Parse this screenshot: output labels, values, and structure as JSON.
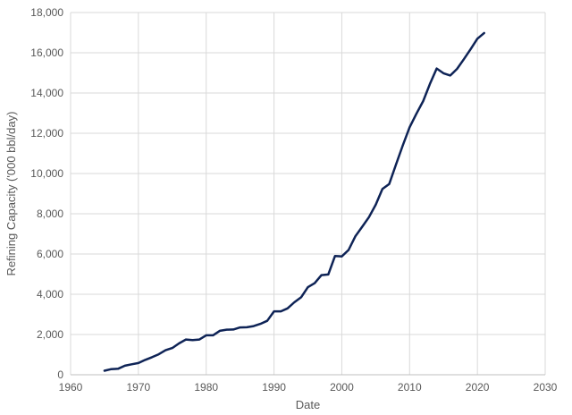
{
  "chart_data": {
    "type": "line",
    "title": "",
    "xlabel": "Date",
    "ylabel": "Refining Capacity ('000 bbl/day)",
    "xlim": [
      1960,
      2030
    ],
    "ylim": [
      0,
      18000
    ],
    "x_ticks": [
      1960,
      1970,
      1980,
      1990,
      2000,
      2010,
      2020,
      2030
    ],
    "y_ticks": [
      0,
      2000,
      4000,
      6000,
      8000,
      10000,
      12000,
      14000,
      16000,
      18000
    ],
    "x_tick_labels": [
      "1960",
      "1970",
      "1980",
      "1990",
      "2000",
      "2010",
      "2020",
      "2030"
    ],
    "y_tick_labels": [
      "0",
      "2,000",
      "4,000",
      "6,000",
      "8,000",
      "10,000",
      "12,000",
      "14,000",
      "16,000",
      "18,000"
    ],
    "grid": true,
    "legend": "none",
    "colors": {
      "line": "#0e2356",
      "grid": "#d9d9d9",
      "axis": "#bfbfbf",
      "text": "#595959"
    },
    "series": [
      {
        "x": [
          1965,
          1966,
          1967,
          1968,
          1969,
          1970,
          1971,
          1972,
          1973,
          1974,
          1975,
          1976,
          1977,
          1978,
          1979,
          1980,
          1981,
          1982,
          1983,
          1984,
          1985,
          1986,
          1987,
          1988,
          1989,
          1990,
          1991,
          1992,
          1993,
          1994,
          1995,
          1996,
          1997,
          1998,
          1999,
          2000,
          2001,
          2002,
          2003,
          2004,
          2005,
          2006,
          2007,
          2008,
          2009,
          2010,
          2011,
          2012,
          2013,
          2014,
          2015,
          2016,
          2017,
          2018,
          2019,
          2020,
          2021
        ],
        "values": [
          200,
          280,
          300,
          450,
          520,
          580,
          740,
          870,
          1020,
          1220,
          1330,
          1560,
          1750,
          1720,
          1750,
          1960,
          1960,
          2180,
          2240,
          2250,
          2350,
          2360,
          2420,
          2530,
          2680,
          3150,
          3150,
          3300,
          3600,
          3850,
          4350,
          4550,
          4950,
          4980,
          5900,
          5880,
          6200,
          6880,
          7350,
          7830,
          8450,
          9230,
          9480,
          10450,
          11400,
          12300,
          12970,
          13600,
          14450,
          15220,
          14980,
          14870,
          15200,
          15680,
          16180,
          16700,
          16980
        ]
      }
    ]
  }
}
